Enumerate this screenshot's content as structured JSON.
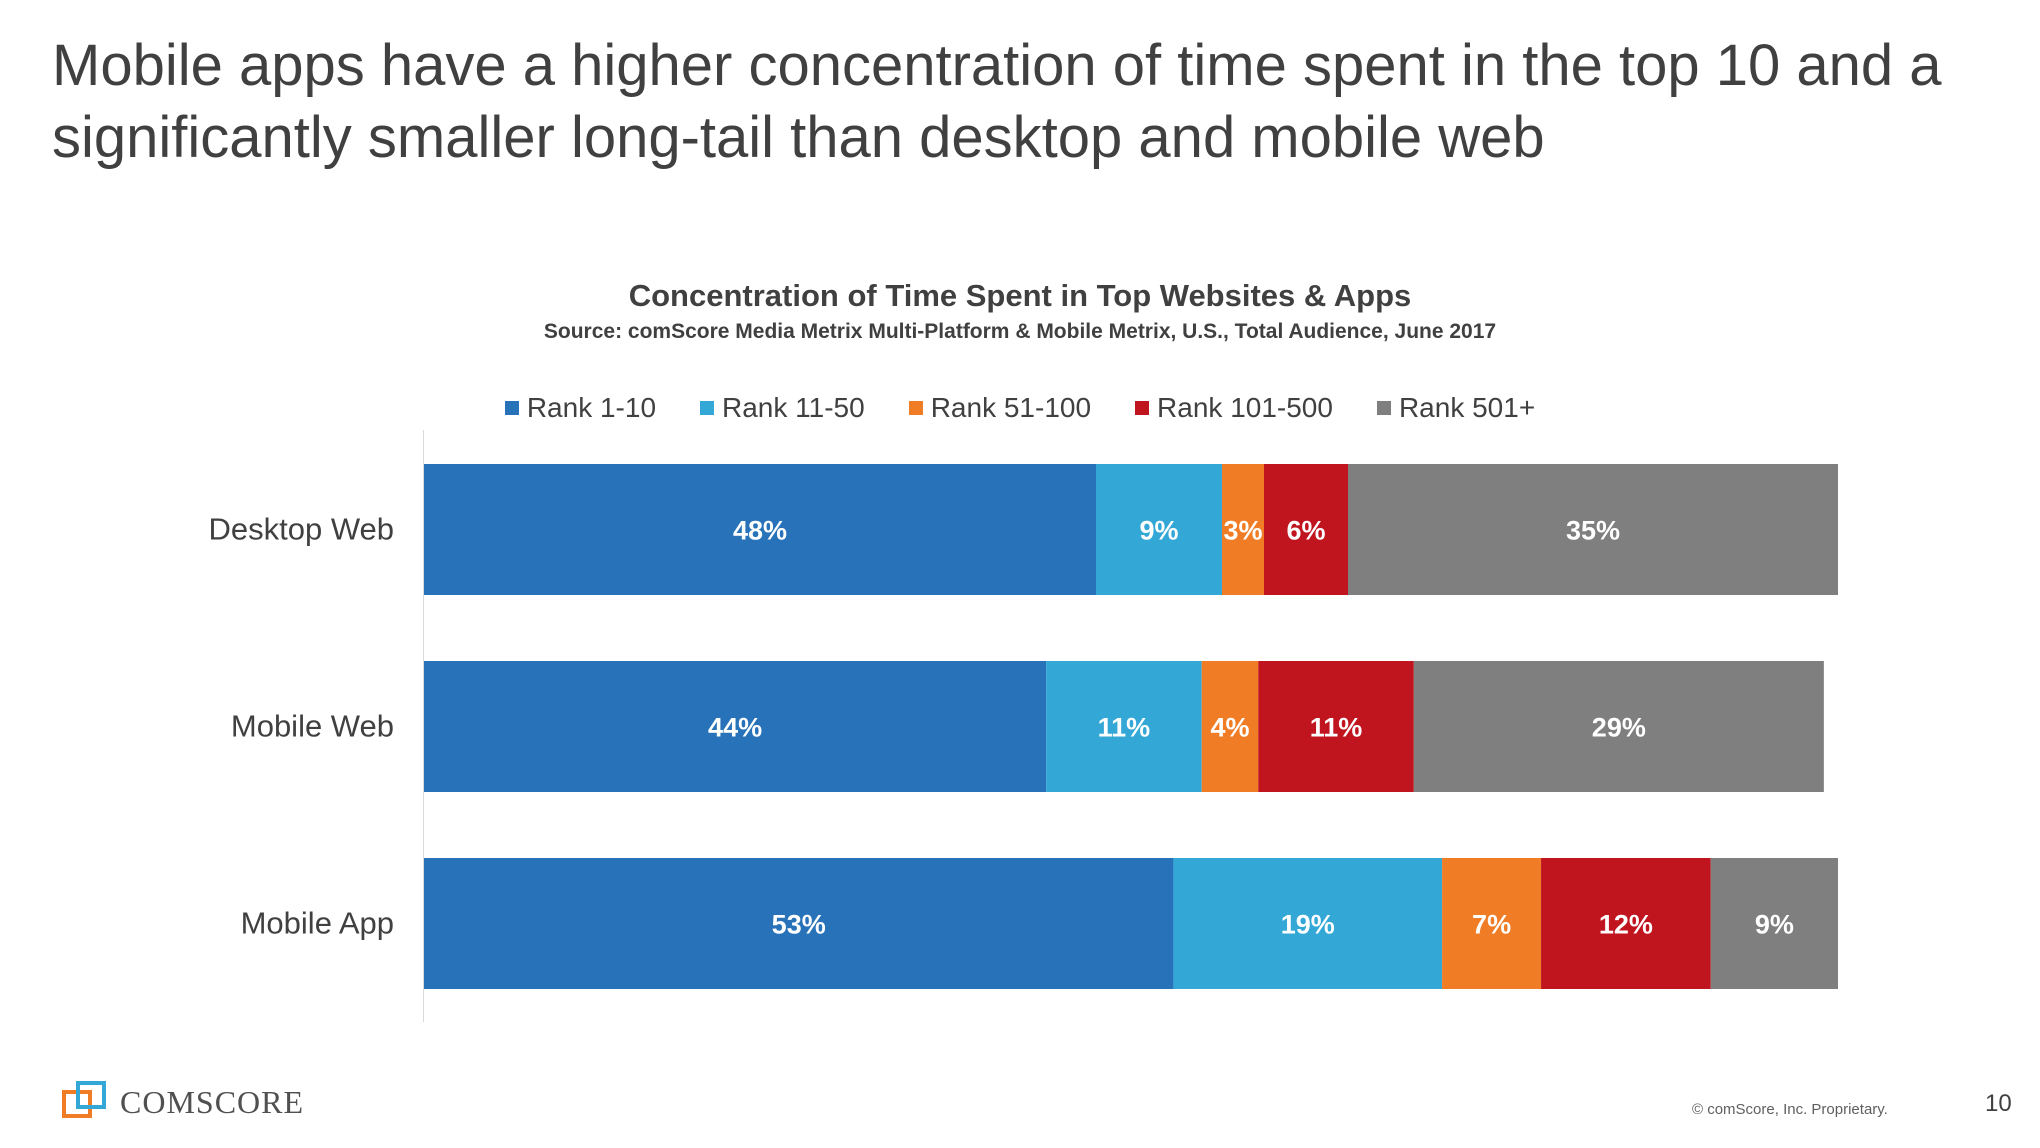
{
  "slide": {
    "headline": "Mobile apps have a higher concentration of time spent in the top 10 and a significantly smaller long-tail than desktop and mobile web",
    "page_number": "10",
    "copyright": "© comScore, Inc. Proprietary.",
    "logo_text_1": "COM",
    "logo_text_2": "SCORE"
  },
  "chart_data": {
    "type": "bar",
    "orientation": "horizontal",
    "stacked": true,
    "title": "Concentration of Time Spent in Top Websites & Apps",
    "subtitle": "Source: comScore Media Metrix Multi-Platform & Mobile Metrix, U.S., Total Audience, June 2017",
    "categories": [
      "Desktop Web",
      "Mobile Web",
      "Mobile App"
    ],
    "series": [
      {
        "name": "Rank 1-10",
        "color": "#2772B9",
        "values": [
          48,
          44,
          53
        ],
        "labels": [
          "48%",
          "44%",
          "53%"
        ]
      },
      {
        "name": "Rank 11-50",
        "color": "#33A8D6",
        "values": [
          9,
          11,
          19
        ],
        "labels": [
          "9%",
          "11%",
          "19%"
        ]
      },
      {
        "name": "Rank 51-100",
        "color": "#F07C26",
        "values": [
          3,
          4,
          7
        ],
        "labels": [
          "3%",
          "4%",
          "7%"
        ]
      },
      {
        "name": "Rank 101-500",
        "color": "#C0141E",
        "values": [
          6,
          11,
          12
        ],
        "labels": [
          "6%",
          "11%",
          "12%"
        ]
      },
      {
        "name": "Rank 501+",
        "color": "#7F7F7F",
        "values": [
          35,
          29,
          9
        ],
        "labels": [
          "35%",
          "29%",
          "9%"
        ]
      }
    ],
    "xlim": [
      0,
      100
    ],
    "legend": "top-center",
    "grid": false
  }
}
